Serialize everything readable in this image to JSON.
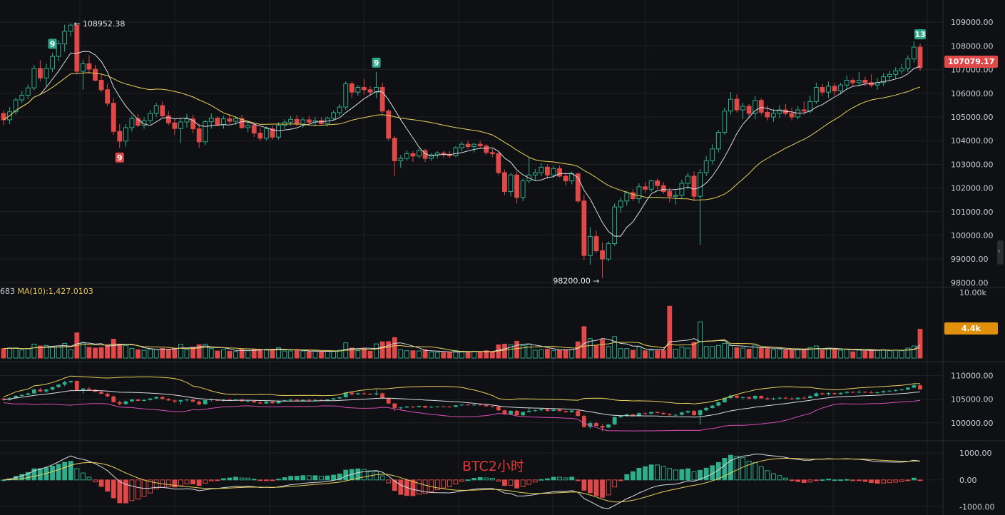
{
  "colors": {
    "background": "#0f1013",
    "grid": "#1e2026",
    "up": "#2eae8b",
    "down": "#e14848",
    "ma_white": "#d8dbe2",
    "ma_yellow": "#e7d25a",
    "band_pink": "#d94fb4",
    "td_badge": "#2ea58a",
    "price_badge": "#e14848",
    "volume_badge": "#e0900c"
  },
  "price_axis": {
    "ticks": [
      "109000.00",
      "108000.00",
      "107000.00",
      "106000.00",
      "105000.00",
      "104000.00",
      "103000.00",
      "102000.00",
      "101000.00",
      "100000.00",
      "99000.00",
      "98000.00"
    ],
    "range": [
      97950,
      109700
    ],
    "current_price_label": "107079.17",
    "current_price": 107079.17
  },
  "annotations": {
    "high_label": "← 108952.38",
    "high_value": 108952.38,
    "low_label": "98200.00 →",
    "low_value": 98200.0
  },
  "td_sequential": [
    {
      "label": "9",
      "candle": 8,
      "position": "above"
    },
    {
      "label": "9",
      "candle": 19,
      "position": "below"
    },
    {
      "label": "9",
      "candle": 61,
      "position": "above"
    },
    {
      "label": "9",
      "candle": 153,
      "position": "above"
    },
    {
      "label": "13",
      "candle": 159,
      "position": "above"
    }
  ],
  "volume_panel": {
    "legend_prefix": "683",
    "legend_ma": "MA(10):1,427.0103",
    "axis_top": "10.00k",
    "current_volume_label": "4.4k",
    "current_volume": 4400,
    "max": 10000
  },
  "band_panel": {
    "ticks": [
      "110000.00",
      "105000.00",
      "100000.00"
    ],
    "range": [
      97400,
      111600
    ]
  },
  "macd_panel": {
    "ticks": [
      "1000.00",
      "0.00",
      "-1000.00"
    ],
    "range": [
      -1200,
      1350
    ]
  },
  "watermark": "BTC2小时",
  "chart_data": {
    "type": "candlestick",
    "interval": "2h",
    "ohlc": [
      [
        105150,
        105300,
        104650,
        104880
      ],
      [
        104880,
        105420,
        104700,
        105220
      ],
      [
        105220,
        105820,
        105100,
        105720
      ],
      [
        105720,
        106100,
        105580,
        105920
      ],
      [
        105920,
        106380,
        105750,
        106230
      ],
      [
        106230,
        107200,
        106120,
        107050
      ],
      [
        107050,
        107400,
        106500,
        106650
      ],
      [
        106650,
        107250,
        106300,
        107050
      ],
      [
        107050,
        107700,
        106900,
        107560
      ],
      [
        107560,
        108250,
        107350,
        108090
      ],
      [
        108090,
        108900,
        107750,
        108620
      ],
      [
        108620,
        108952,
        108400,
        108880
      ],
      [
        108880,
        108952,
        106800,
        106930
      ],
      [
        106930,
        107400,
        106150,
        107250
      ],
      [
        107250,
        107620,
        106850,
        107020
      ],
      [
        107020,
        107200,
        106500,
        106550
      ],
      [
        106550,
        106800,
        106050,
        106150
      ],
      [
        106150,
        106400,
        105450,
        105580
      ],
      [
        105580,
        105800,
        104250,
        104390
      ],
      [
        104390,
        104700,
        103680,
        103980
      ],
      [
        103980,
        104700,
        103750,
        104550
      ],
      [
        104550,
        105050,
        104380,
        104930
      ],
      [
        104930,
        105120,
        104580,
        104650
      ],
      [
        104650,
        104980,
        104500,
        104850
      ],
      [
        104850,
        105300,
        104700,
        105150
      ],
      [
        105150,
        105600,
        105000,
        105480
      ],
      [
        105480,
        105650,
        104980,
        105050
      ],
      [
        105050,
        105250,
        104650,
        104750
      ],
      [
        104750,
        104920,
        104250,
        104510
      ],
      [
        104510,
        104950,
        103900,
        104790
      ],
      [
        104790,
        105130,
        104550,
        104920
      ],
      [
        104920,
        105100,
        104300,
        104500
      ],
      [
        104500,
        104720,
        103700,
        103950
      ],
      [
        103950,
        104880,
        103800,
        104800
      ],
      [
        104800,
        105150,
        104500,
        104950
      ],
      [
        104950,
        105020,
        104600,
        104680
      ],
      [
        104680,
        105050,
        104500,
        104920
      ],
      [
        104920,
        105100,
        104700,
        104820
      ],
      [
        104820,
        105030,
        104650,
        104930
      ],
      [
        104930,
        105090,
        104500,
        104550
      ],
      [
        104550,
        104800,
        104350,
        104650
      ],
      [
        104650,
        104750,
        104150,
        104320
      ],
      [
        104320,
        104550,
        103980,
        104100
      ],
      [
        104100,
        104590,
        104000,
        104500
      ],
      [
        104500,
        104650,
        104050,
        104150
      ],
      [
        104150,
        104780,
        104050,
        104650
      ],
      [
        104650,
        104900,
        104480,
        104780
      ],
      [
        104780,
        105050,
        104620,
        104900
      ],
      [
        104900,
        105080,
        104600,
        104700
      ],
      [
        104700,
        104980,
        104550,
        104880
      ],
      [
        104880,
        105050,
        104680,
        104780
      ],
      [
        104780,
        105000,
        104600,
        104850
      ],
      [
        104850,
        104990,
        104650,
        104720
      ],
      [
        104720,
        105020,
        104600,
        104950
      ],
      [
        104950,
        105280,
        104850,
        105180
      ],
      [
        105180,
        105550,
        105050,
        105420
      ],
      [
        105420,
        106500,
        105300,
        106400
      ],
      [
        106400,
        106500,
        105800,
        106050
      ],
      [
        106050,
        106350,
        105900,
        106250
      ],
      [
        106250,
        106600,
        105950,
        106150
      ],
      [
        106150,
        106300,
        105900,
        106050
      ],
      [
        106050,
        106900,
        105800,
        106250
      ],
      [
        106250,
        106450,
        105150,
        105250
      ],
      [
        105250,
        105320,
        104000,
        104100
      ],
      [
        104100,
        104200,
        102500,
        103150
      ],
      [
        103150,
        103400,
        102850,
        103250
      ],
      [
        103250,
        103600,
        103150,
        103450
      ],
      [
        103450,
        103550,
        103100,
        103350
      ],
      [
        103350,
        103680,
        103250,
        103580
      ],
      [
        103580,
        103650,
        103100,
        103250
      ],
      [
        103250,
        103480,
        103150,
        103400
      ],
      [
        103400,
        103550,
        103250,
        103480
      ],
      [
        103480,
        103560,
        103280,
        103420
      ],
      [
        103420,
        103550,
        103280,
        103360
      ],
      [
        103360,
        103780,
        103300,
        103700
      ],
      [
        103700,
        103950,
        103550,
        103850
      ],
      [
        103850,
        104000,
        103650,
        103750
      ],
      [
        103750,
        103900,
        103500,
        103850
      ],
      [
        103850,
        103990,
        103700,
        103780
      ],
      [
        103780,
        103850,
        103400,
        103500
      ],
      [
        103500,
        103650,
        103300,
        103450
      ],
      [
        103450,
        103560,
        102550,
        102650
      ],
      [
        102650,
        102780,
        101700,
        101850
      ],
      [
        101850,
        102650,
        101650,
        102550
      ],
      [
        102550,
        102700,
        101350,
        101600
      ],
      [
        101600,
        102400,
        101450,
        102300
      ],
      [
        102300,
        103300,
        102200,
        102550
      ],
      [
        102550,
        102800,
        102300,
        102650
      ],
      [
        102650,
        103050,
        102500,
        102880
      ],
      [
        102880,
        103000,
        102400,
        102550
      ],
      [
        102550,
        102920,
        102450,
        102820
      ],
      [
        102820,
        102950,
        102450,
        102500
      ],
      [
        102500,
        102650,
        102100,
        102300
      ],
      [
        102300,
        102700,
        102150,
        102600
      ],
      [
        102600,
        102650,
        101350,
        101450
      ],
      [
        101450,
        101700,
        98950,
        99150
      ],
      [
        99150,
        100350,
        98750,
        99950
      ],
      [
        99950,
        100200,
        99250,
        99350
      ],
      [
        99350,
        99700,
        98200,
        99000
      ],
      [
        99000,
        99750,
        98900,
        99650
      ],
      [
        99650,
        101350,
        99550,
        101200
      ],
      [
        101200,
        101600,
        100950,
        101450
      ],
      [
        101450,
        101900,
        101250,
        101800
      ],
      [
        101800,
        101950,
        101450,
        101550
      ],
      [
        101550,
        102200,
        101350,
        102050
      ],
      [
        102050,
        102250,
        101800,
        101950
      ],
      [
        101950,
        102350,
        101850,
        102300
      ],
      [
        102300,
        102400,
        101950,
        102100
      ],
      [
        102100,
        102250,
        101750,
        101850
      ],
      [
        101850,
        102000,
        101400,
        101650
      ],
      [
        101650,
        101900,
        101300,
        101700
      ],
      [
        101700,
        102350,
        101550,
        102200
      ],
      [
        102200,
        102650,
        101950,
        102500
      ],
      [
        102500,
        102700,
        101450,
        101650
      ],
      [
        101650,
        102800,
        99600,
        102650
      ],
      [
        102650,
        103350,
        102500,
        103150
      ],
      [
        103150,
        103850,
        103000,
        103650
      ],
      [
        103650,
        104450,
        103500,
        104350
      ],
      [
        104350,
        105400,
        104250,
        105250
      ],
      [
        105250,
        106050,
        105100,
        105750
      ],
      [
        105750,
        105950,
        105200,
        105300
      ],
      [
        105300,
        105600,
        104900,
        105450
      ],
      [
        105450,
        105550,
        104950,
        105150
      ],
      [
        105150,
        105880,
        104900,
        105700
      ],
      [
        105700,
        105800,
        105100,
        105200
      ],
      [
        105200,
        105500,
        104850,
        105000
      ],
      [
        105000,
        105350,
        104800,
        105150
      ],
      [
        105150,
        105500,
        104950,
        105300
      ],
      [
        105300,
        105550,
        105050,
        105150
      ],
      [
        105150,
        105400,
        104850,
        105000
      ],
      [
        105000,
        105450,
        104900,
        105300
      ],
      [
        105300,
        105650,
        105100,
        105250
      ],
      [
        105250,
        105900,
        105150,
        105650
      ],
      [
        105650,
        106450,
        105550,
        106250
      ],
      [
        106250,
        106400,
        105900,
        106050
      ],
      [
        106050,
        106500,
        105800,
        106300
      ],
      [
        106300,
        106450,
        105900,
        106100
      ],
      [
        106100,
        106450,
        105950,
        106350
      ],
      [
        106350,
        106750,
        106150,
        106550
      ],
      [
        106550,
        106650,
        106300,
        106450
      ],
      [
        106450,
        106900,
        106300,
        106550
      ],
      [
        106550,
        106700,
        106300,
        106450
      ],
      [
        106450,
        106800,
        106250,
        106350
      ],
      [
        106350,
        106650,
        106150,
        106450
      ],
      [
        106450,
        106850,
        106300,
        106700
      ],
      [
        106700,
        106950,
        106500,
        106800
      ],
      [
        106800,
        107100,
        106600,
        106950
      ],
      [
        106950,
        107250,
        106800,
        107050
      ],
      [
        107050,
        107600,
        106900,
        107450
      ],
      [
        107450,
        108200,
        107300,
        107950
      ],
      [
        107950,
        108100,
        106950,
        107079
      ]
    ],
    "volume": [],
    "indicators": [
      "MA(short)",
      "MA(long)",
      "Bands",
      "MACD",
      "TD Sequential"
    ]
  }
}
